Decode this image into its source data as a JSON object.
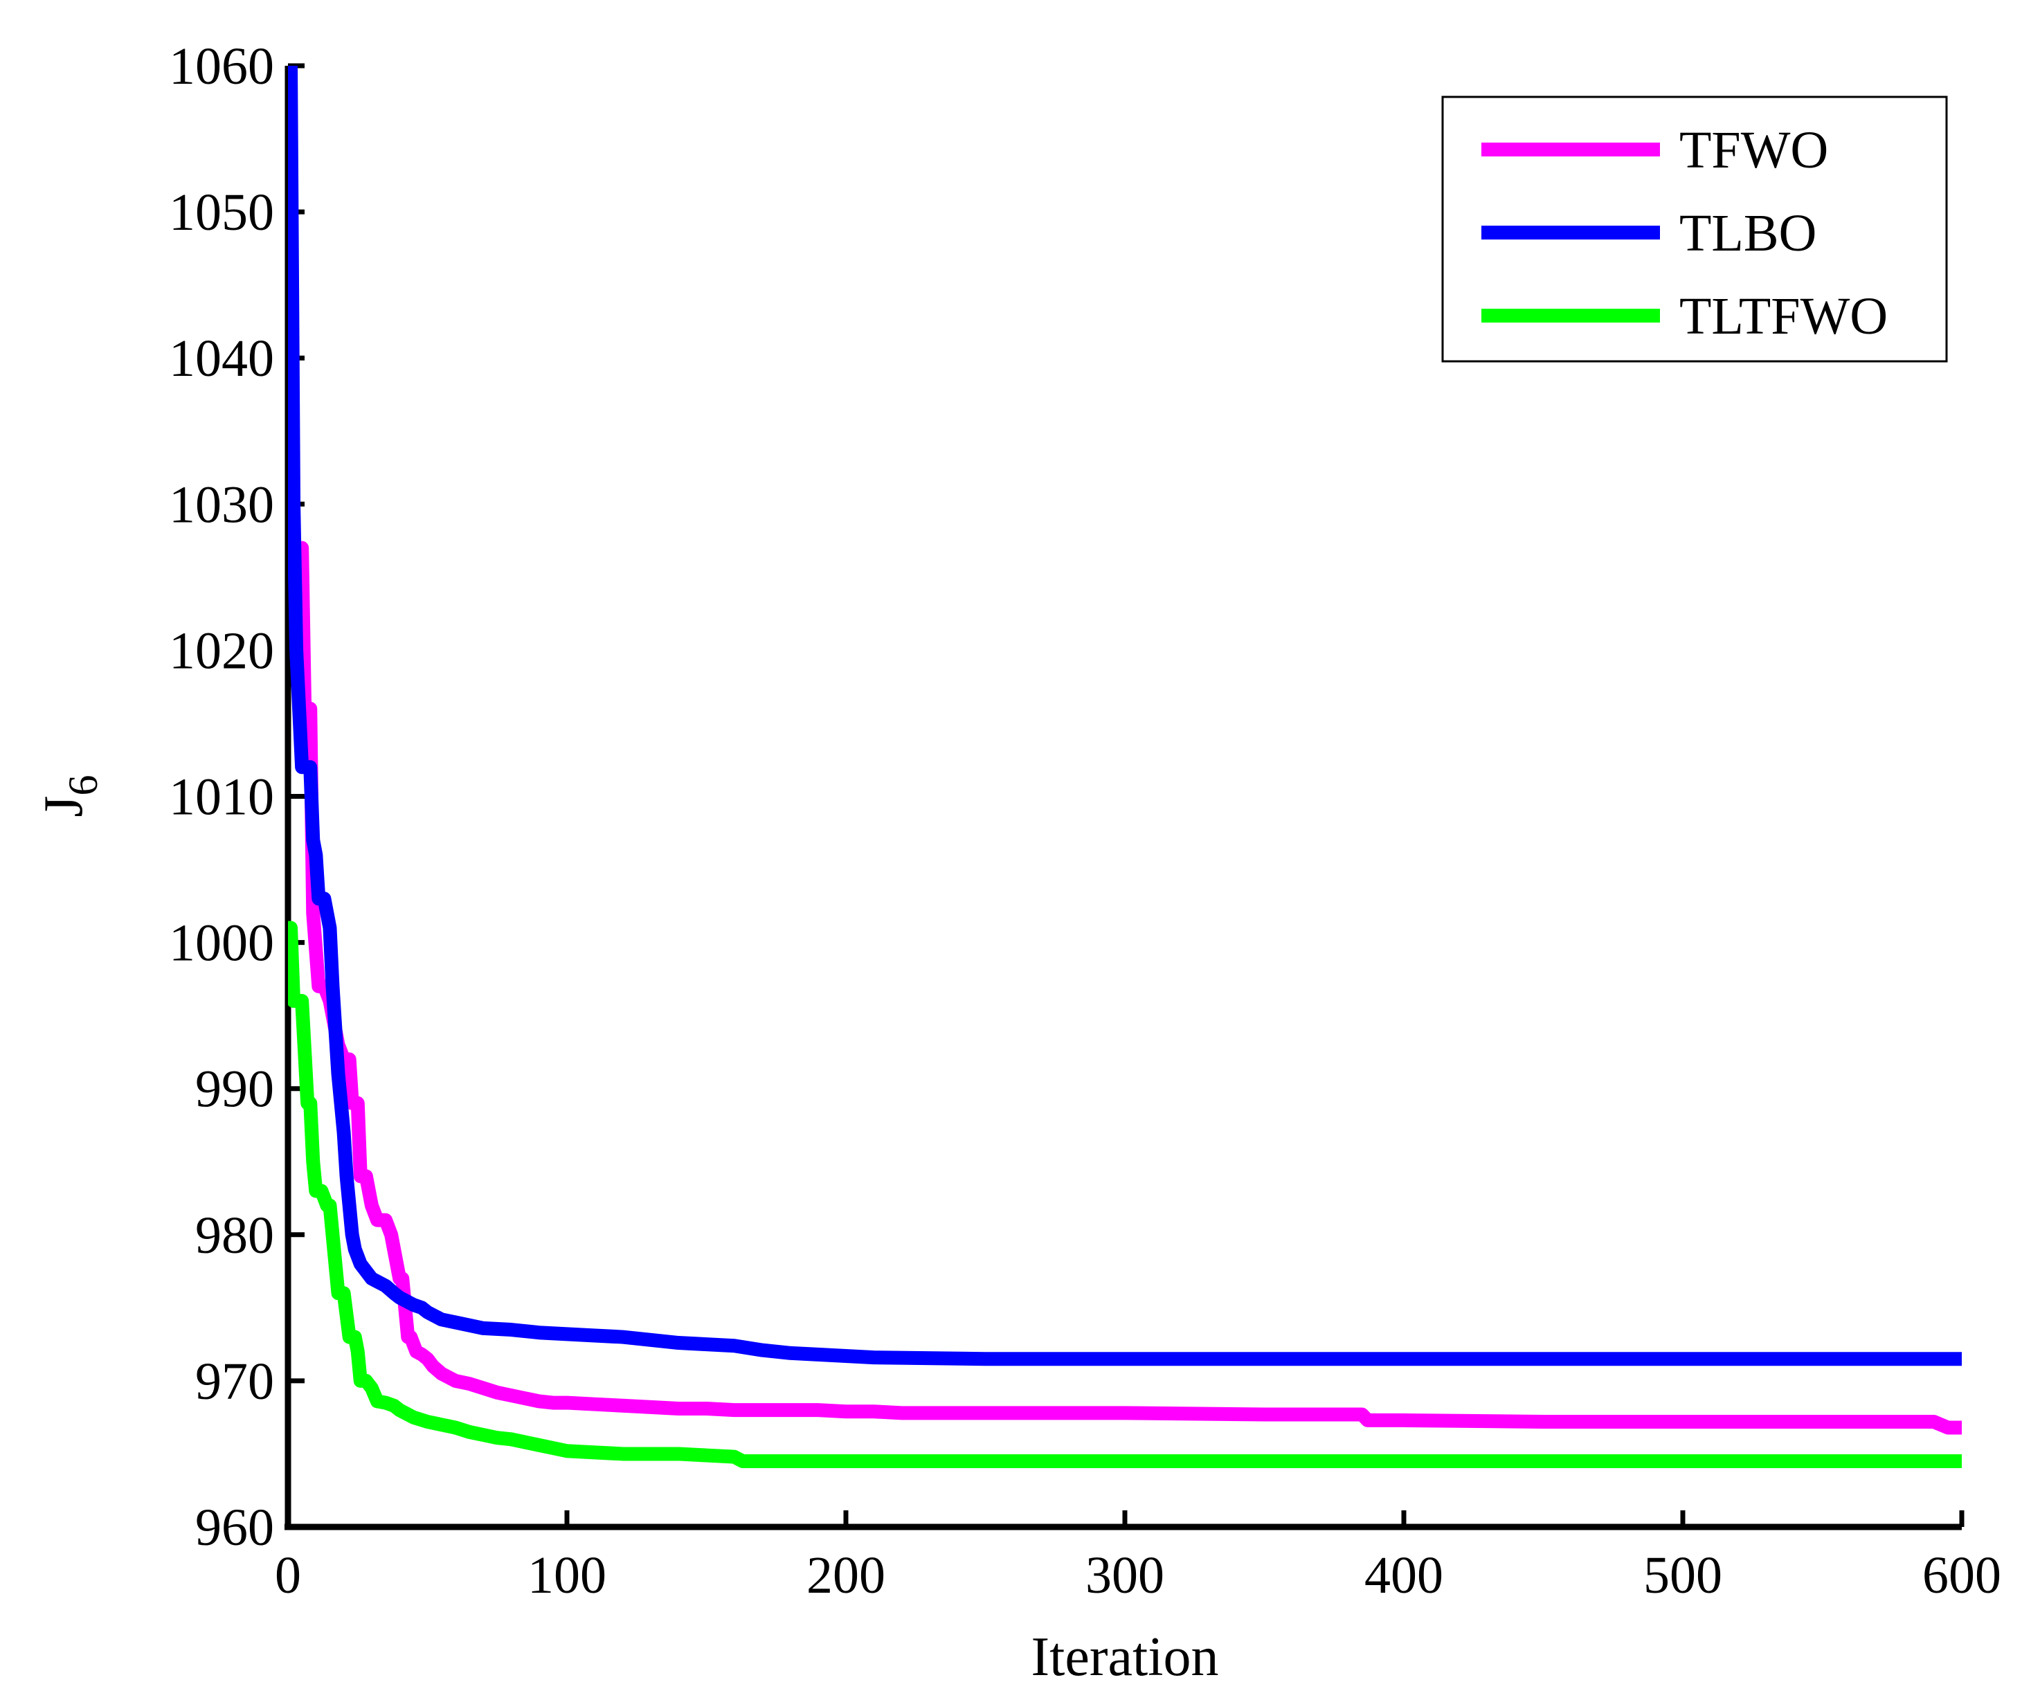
{
  "chart_data": {
    "type": "line",
    "title": "",
    "xlabel": "Iteration",
    "ylabel": {
      "main": "J",
      "subscript": "6"
    },
    "xlim": [
      0,
      600
    ],
    "ylim": [
      960,
      1060
    ],
    "xticks": [
      0,
      100,
      200,
      300,
      400,
      500,
      600
    ],
    "yticks": [
      960,
      970,
      980,
      990,
      1000,
      1010,
      1020,
      1030,
      1040,
      1050,
      1060
    ],
    "xtick_labels": [
      "0",
      "100",
      "200",
      "300",
      "400",
      "500",
      "600"
    ],
    "ytick_labels": [
      "960",
      "970",
      "980",
      "990",
      "1000",
      "1010",
      "1020",
      "1030",
      "1040",
      "1050",
      "1060"
    ],
    "grid": false,
    "legend_position": "top-right",
    "series": [
      {
        "name": "TFWO",
        "color": "#ff00ff",
        "x": [
          0,
          1,
          3,
          5,
          6,
          8,
          9,
          11,
          13,
          15,
          18,
          20,
          22,
          23,
          25,
          26,
          28,
          30,
          32,
          35,
          37,
          38,
          40,
          41,
          43,
          44,
          46,
          48,
          50,
          52,
          55,
          58,
          60,
          65,
          70,
          75,
          80,
          85,
          90,
          95,
          100,
          110,
          120,
          130,
          140,
          150,
          160,
          170,
          180,
          190,
          200,
          210,
          220,
          250,
          300,
          350,
          385,
          387,
          400,
          450,
          500,
          550,
          590,
          595,
          600
        ],
        "y": [
          1028,
          1028,
          1027,
          1027,
          1016,
          1016,
          1002,
          997,
          997,
          996,
          993,
          992,
          992,
          989,
          989,
          984,
          984,
          982,
          981,
          981,
          980,
          979,
          977,
          977,
          973,
          973,
          972,
          971.8,
          971.5,
          971,
          970.5,
          970.2,
          970,
          969.8,
          969.5,
          969.2,
          969,
          968.8,
          968.6,
          968.5,
          968.5,
          968.4,
          968.3,
          968.2,
          968.1,
          968.1,
          968.0,
          968.0,
          968.0,
          968.0,
          967.9,
          967.9,
          967.8,
          967.8,
          967.8,
          967.7,
          967.7,
          967.3,
          967.3,
          967.2,
          967.2,
          967.2,
          967.2,
          966.8,
          966.8
        ]
      },
      {
        "name": "TLBO",
        "color": "#0000ff",
        "x": [
          0,
          1,
          2,
          3,
          5,
          6,
          8,
          9,
          10,
          11,
          13,
          14,
          15,
          16,
          17,
          18,
          19,
          20,
          21,
          22,
          23,
          24,
          25,
          26,
          28,
          30,
          32,
          35,
          38,
          40,
          42,
          45,
          48,
          50,
          55,
          60,
          65,
          70,
          80,
          90,
          100,
          110,
          120,
          130,
          140,
          150,
          160,
          170,
          180,
          190,
          200,
          210,
          250,
          300,
          400,
          500,
          600
        ],
        "y": [
          1060,
          1060,
          1030,
          1020,
          1012,
          1012,
          1012,
          1007,
          1006,
          1003,
          1003,
          1002,
          1001,
          997,
          994,
          991,
          989,
          987,
          984,
          982,
          980,
          979,
          978.5,
          978,
          977.5,
          977,
          976.8,
          976.5,
          976,
          975.7,
          975.5,
          975.2,
          975,
          974.7,
          974.2,
          974,
          973.8,
          973.6,
          973.5,
          973.3,
          973.2,
          973.1,
          973,
          972.8,
          972.6,
          972.5,
          972.4,
          972.1,
          971.9,
          971.8,
          971.7,
          971.6,
          971.5,
          971.5,
          971.5,
          971.5,
          971.5
        ]
      },
      {
        "name": "TLTFWO",
        "color": "#00ff00",
        "x": [
          0,
          1,
          2,
          3,
          5,
          7,
          8,
          9,
          10,
          12,
          14,
          15,
          16,
          17,
          18,
          20,
          22,
          24,
          25,
          26,
          28,
          30,
          32,
          35,
          38,
          40,
          45,
          50,
          55,
          60,
          65,
          70,
          75,
          80,
          85,
          90,
          95,
          100,
          110,
          120,
          130,
          140,
          150,
          160,
          163,
          165,
          200,
          300,
          400,
          500,
          600
        ],
        "y": [
          1001,
          1001,
          996,
          996,
          996,
          989,
          989,
          985,
          983,
          983,
          982,
          982,
          980,
          978,
          976,
          976,
          973,
          973,
          972,
          970,
          970,
          969.5,
          968.6,
          968.5,
          968.3,
          968,
          967.5,
          967.2,
          967,
          966.8,
          966.5,
          966.3,
          966.1,
          966,
          965.8,
          965.6,
          965.4,
          965.2,
          965.1,
          965.0,
          965.0,
          965.0,
          964.9,
          964.8,
          964.5,
          964.5,
          964.5,
          964.5,
          964.5,
          964.5,
          964.5
        ]
      }
    ]
  }
}
